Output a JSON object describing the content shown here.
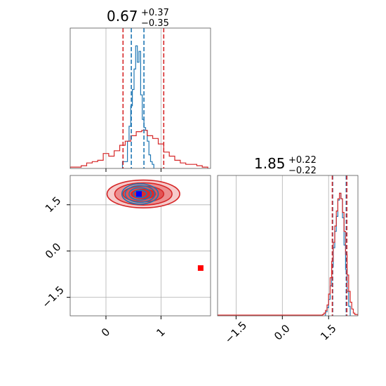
{
  "chart_data": [
    {
      "type": "histogram",
      "panel": "top-left",
      "title": {
        "value": "0.67",
        "plus": "+0.37",
        "minus": "−0.35"
      },
      "xlim": [
        -0.65,
        1.9
      ],
      "grid": true,
      "series": [
        {
          "color": "#1f77b4",
          "bin_edges": [
            0.3,
            0.33,
            0.36,
            0.39,
            0.42,
            0.45,
            0.48,
            0.51,
            0.54,
            0.57,
            0.6,
            0.63,
            0.66,
            0.69,
            0.72,
            0.75,
            0.78,
            0.81,
            0.84,
            0.87
          ],
          "counts": [
            0.05,
            0.05,
            0.05,
            0.2,
            0.31,
            0.46,
            0.58,
            0.73,
            0.9,
            0.78,
            0.86,
            0.54,
            0.36,
            0.3,
            0.28,
            0.2,
            0.1,
            0.05,
            0.03
          ]
        },
        {
          "color": "#d62728",
          "bin_edges": [
            -0.65,
            -0.55,
            -0.45,
            -0.35,
            -0.25,
            -0.15,
            -0.05,
            0.05,
            0.15,
            0.25,
            0.35,
            0.45,
            0.55,
            0.65,
            0.75,
            0.85,
            0.95,
            1.05,
            1.15,
            1.25,
            1.35,
            1.45,
            1.55,
            1.65,
            1.75,
            1.85
          ],
          "counts": [
            0.01,
            0.01,
            0.02,
            0.04,
            0.05,
            0.06,
            0.11,
            0.09,
            0.13,
            0.17,
            0.2,
            0.24,
            0.27,
            0.28,
            0.24,
            0.22,
            0.18,
            0.12,
            0.09,
            0.06,
            0.04,
            0.03,
            0.03,
            0.02,
            0.01
          ]
        }
      ],
      "quantile_lines": [
        {
          "color": "#1f77b4",
          "values": [
            0.46,
            0.69
          ]
        },
        {
          "color": "#d62728",
          "values": [
            0.31,
            1.05
          ]
        }
      ]
    },
    {
      "type": "contour",
      "panel": "bottom-left",
      "xlim": [
        -0.65,
        1.9
      ],
      "ylim": [
        -2.1,
        2.45
      ],
      "xticks": [
        0,
        1
      ],
      "yticks": [
        -1.5,
        0.0,
        1.5
      ],
      "grid": true,
      "contours": [
        {
          "color": "#d62728",
          "fill": true,
          "cx": 0.68,
          "cy": 1.85,
          "levels": [
            [
              0.22,
              0.15
            ],
            [
              0.37,
              0.26
            ],
            [
              0.52,
              0.36
            ],
            [
              0.66,
              0.45
            ]
          ]
        },
        {
          "color": "#1f77b4",
          "fill": false,
          "cx": 0.62,
          "cy": 1.85,
          "levels": [
            [
              0.12,
              0.12
            ],
            [
              0.2,
              0.2
            ],
            [
              0.27,
              0.27
            ],
            [
              0.33,
              0.33
            ]
          ]
        }
      ],
      "markers": [
        {
          "color": "#0000ff",
          "x": 0.6,
          "y": 1.85
        },
        {
          "color": "#ff0000",
          "x": 1.72,
          "y": -0.55
        }
      ]
    },
    {
      "type": "histogram",
      "panel": "bottom-right",
      "title": {
        "value": "1.85",
        "plus": "+0.22",
        "minus": "−0.22"
      },
      "xlim": [
        -2.1,
        2.45
      ],
      "xticks": [
        -1.5,
        0.0,
        1.5
      ],
      "tick_labels": [
        "−1.5",
        "0.0",
        "1.5"
      ],
      "grid": true,
      "series": [
        {
          "color": "#1f77b4",
          "bin_edges": [
            1.4,
            1.45,
            1.5,
            1.55,
            1.6,
            1.65,
            1.7,
            1.75,
            1.8,
            1.85,
            1.9,
            1.95,
            2.0,
            2.05,
            2.1,
            2.15,
            2.2
          ],
          "counts": [
            0.03,
            0.06,
            0.12,
            0.22,
            0.36,
            0.5,
            0.62,
            0.73,
            0.85,
            0.9,
            0.86,
            0.72,
            0.52,
            0.34,
            0.18,
            0.07
          ]
        },
        {
          "color": "#d62728",
          "bin_edges": [
            -2.1,
            1.3,
            1.35,
            1.4,
            1.45,
            1.5,
            1.55,
            1.6,
            1.65,
            1.7,
            1.75,
            1.8,
            1.85,
            1.9,
            1.95,
            2.0,
            2.05,
            2.1,
            2.15,
            2.2,
            2.25,
            2.3,
            2.35,
            2.4,
            2.45
          ],
          "counts": [
            0.005,
            0.01,
            0.02,
            0.04,
            0.08,
            0.16,
            0.28,
            0.4,
            0.54,
            0.66,
            0.77,
            0.86,
            0.9,
            0.86,
            0.76,
            0.62,
            0.45,
            0.3,
            0.18,
            0.1,
            0.05,
            0.02,
            0.01,
            0.01
          ]
        }
      ],
      "quantile_lines": [
        {
          "color": "#1f77b4",
          "values": [
            1.63,
            2.07
          ]
        },
        {
          "color": "#d62728",
          "values": [
            1.62,
            2.09
          ]
        }
      ]
    }
  ]
}
